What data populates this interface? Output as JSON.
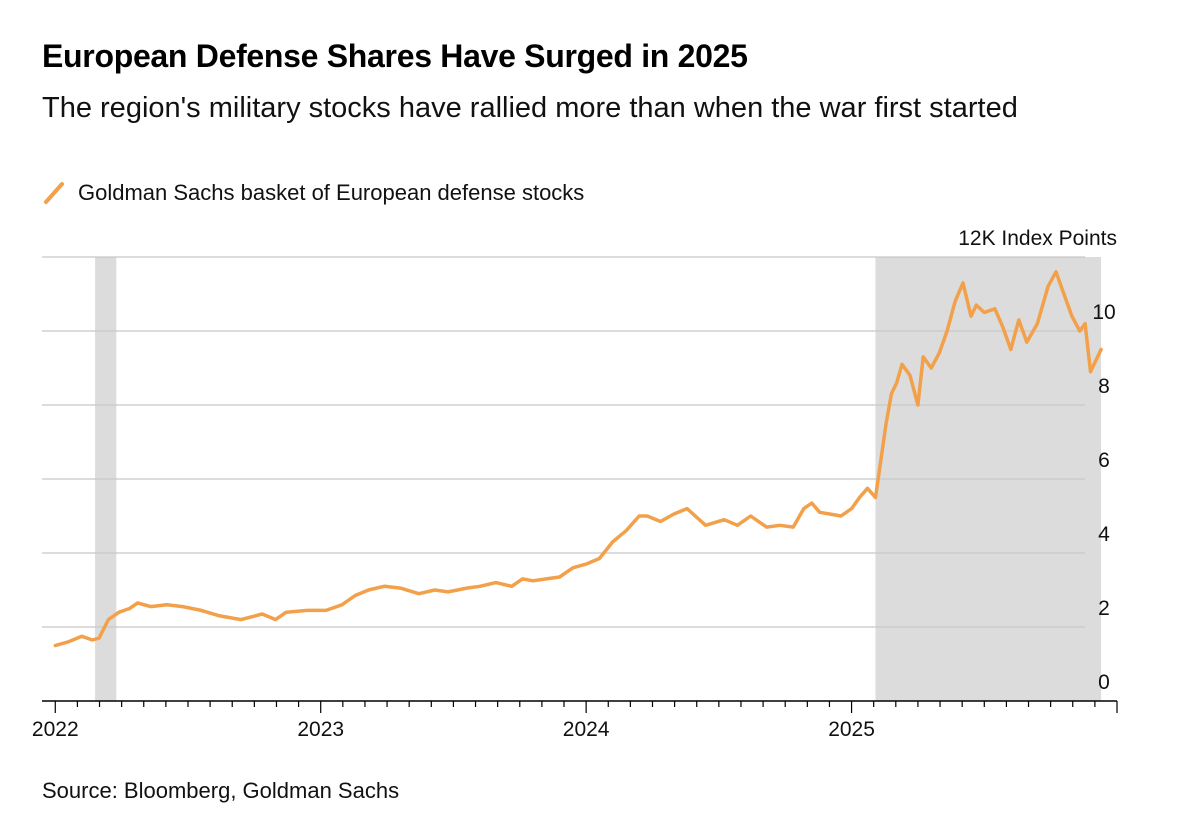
{
  "header": {
    "title": "European Defense Shares Have Surged in 2025",
    "subtitle": "The region's military stocks have rallied more than when the war first started"
  },
  "legend": {
    "label": "Goldman Sachs basket of European defense stocks"
  },
  "source": "Source: Bloomberg, Goldman Sachs",
  "colors": {
    "series": "#F2A04A",
    "shade": "#DCDCDC",
    "grid": "#C8C8C8",
    "axis": "#000000"
  },
  "chart_data": {
    "type": "line",
    "title": "European Defense Shares Have Surged in 2025",
    "subtitle": "The region's military stocks have rallied more than when the war first started",
    "ylabel": "12K Index Points",
    "ylim": [
      0,
      12
    ],
    "yticks": [
      {
        "value": 0,
        "label": "0"
      },
      {
        "value": 2,
        "label": "2"
      },
      {
        "value": 4,
        "label": "4"
      },
      {
        "value": 6,
        "label": "6"
      },
      {
        "value": 8,
        "label": "8"
      },
      {
        "value": 10,
        "label": "10"
      },
      {
        "value": 12,
        "label": "12K Index Points"
      }
    ],
    "xlim": [
      2021.95,
      2026.0
    ],
    "xticks": [
      {
        "value": 2022,
        "label": "2022"
      },
      {
        "value": 2023,
        "label": "2023"
      },
      {
        "value": 2024,
        "label": "2024"
      },
      {
        "value": 2025,
        "label": "2025"
      }
    ],
    "shaded_ranges": [
      {
        "start": 2022.15,
        "end": 2022.23
      },
      {
        "start": 2025.09,
        "end": 2025.94
      }
    ],
    "series": [
      {
        "name": "Goldman Sachs basket of European defense stocks",
        "x": [
          2022.0,
          2022.05,
          2022.1,
          2022.12,
          2022.14,
          2022.165,
          2022.2,
          2022.24,
          2022.28,
          2022.31,
          2022.36,
          2022.42,
          2022.48,
          2022.55,
          2022.62,
          2022.7,
          2022.78,
          2022.83,
          2022.87,
          2022.95,
          2023.02,
          2023.08,
          2023.13,
          2023.18,
          2023.24,
          2023.3,
          2023.37,
          2023.43,
          2023.48,
          2023.55,
          2023.6,
          2023.66,
          2023.72,
          2023.76,
          2023.8,
          2023.85,
          2023.9,
          2023.95,
          2024.0,
          2024.05,
          2024.1,
          2024.15,
          2024.2,
          2024.23,
          2024.28,
          2024.33,
          2024.38,
          2024.45,
          2024.52,
          2024.57,
          2024.62,
          2024.68,
          2024.73,
          2024.78,
          2024.82,
          2024.85,
          2024.88,
          2024.92,
          2024.96,
          2025.0,
          2025.03,
          2025.06,
          2025.09,
          2025.11,
          2025.13,
          2025.15,
          2025.17,
          2025.19,
          2025.22,
          2025.25,
          2025.27,
          2025.3,
          2025.33,
          2025.36,
          2025.39,
          2025.42,
          2025.45,
          2025.47,
          2025.5,
          2025.54,
          2025.57,
          2025.6,
          2025.63,
          2025.66,
          2025.7,
          2025.74,
          2025.77,
          2025.8,
          2025.83,
          2025.86,
          2025.88,
          2025.9,
          2025.92,
          2025.94
        ],
        "values": [
          1.5,
          1.6,
          1.75,
          1.7,
          1.65,
          1.7,
          2.2,
          2.4,
          2.5,
          2.65,
          2.55,
          2.6,
          2.55,
          2.45,
          2.3,
          2.2,
          2.35,
          2.2,
          2.4,
          2.45,
          2.45,
          2.6,
          2.85,
          3.0,
          3.1,
          3.05,
          2.9,
          3.0,
          2.95,
          3.05,
          3.1,
          3.2,
          3.1,
          3.3,
          3.25,
          3.3,
          3.35,
          3.6,
          3.7,
          3.85,
          4.3,
          4.6,
          5.0,
          5.0,
          4.85,
          5.05,
          5.2,
          4.75,
          4.9,
          4.75,
          5.0,
          4.7,
          4.75,
          4.7,
          5.2,
          5.35,
          5.1,
          5.05,
          5.0,
          5.2,
          5.5,
          5.75,
          5.5,
          6.5,
          7.5,
          8.3,
          8.6,
          9.1,
          8.8,
          8.0,
          9.3,
          9.0,
          9.4,
          10.0,
          10.8,
          11.3,
          10.4,
          10.7,
          10.5,
          10.6,
          10.1,
          9.5,
          10.3,
          9.7,
          10.2,
          11.2,
          11.6,
          11.0,
          10.4,
          10.0,
          10.2,
          8.9,
          9.2,
          9.5
        ]
      }
    ]
  }
}
